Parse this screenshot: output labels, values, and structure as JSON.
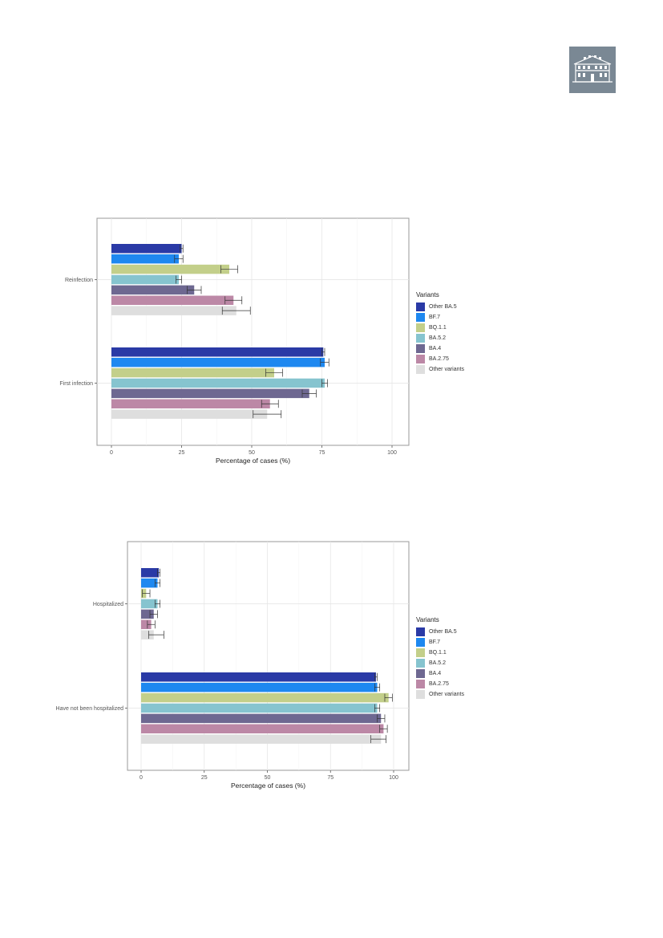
{
  "logo": {
    "icon": "building-icon",
    "color": "#7a8894"
  },
  "legend": {
    "title": "Variants",
    "items": [
      {
        "label": "Other BA.5",
        "color": "#2a3aa6"
      },
      {
        "label": "BF.7",
        "color": "#1e88f0"
      },
      {
        "label": "BQ.1.1",
        "color": "#c3cf8a"
      },
      {
        "label": "BA.5.2",
        "color": "#86c4cf"
      },
      {
        "label": "BA.4",
        "color": "#6e6891"
      },
      {
        "label": "BA.2.75",
        "color": "#bc88a6"
      },
      {
        "label": "Other variants",
        "color": "#dedede"
      }
    ]
  },
  "chart_data": [
    {
      "type": "bar",
      "orientation": "horizontal",
      "categories": [
        "Reinfection",
        "First infection"
      ],
      "series": [
        {
          "name": "Other BA.5",
          "values": [
            25,
            75.5
          ],
          "error": [
            [
              24.5,
              25.5
            ],
            [
              75,
              76
            ]
          ]
        },
        {
          "name": "BF.7",
          "values": [
            24,
            76
          ],
          "error": [
            [
              22.5,
              25.5
            ],
            [
              74.5,
              77.5
            ]
          ]
        },
        {
          "name": "BQ.1.1",
          "values": [
            42,
            58
          ],
          "error": [
            [
              39,
              45
            ],
            [
              55,
              61
            ]
          ]
        },
        {
          "name": "BA.5.2",
          "values": [
            24,
            76
          ],
          "error": [
            [
              23,
              25
            ],
            [
              75,
              77
            ]
          ]
        },
        {
          "name": "BA.4",
          "values": [
            29.5,
            70.5
          ],
          "error": [
            [
              27,
              32
            ],
            [
              68,
              73
            ]
          ]
        },
        {
          "name": "BA.2.75",
          "values": [
            43.5,
            56.5
          ],
          "error": [
            [
              40.5,
              46.5
            ],
            [
              53.5,
              59.5
            ]
          ]
        },
        {
          "name": "Other variants",
          "values": [
            44.5,
            55.5
          ],
          "error": [
            [
              39.5,
              49.5
            ],
            [
              50.5,
              60.5
            ]
          ]
        }
      ],
      "xlabel": "Percentage of cases (%)",
      "ylabel": "",
      "xlim": [
        0,
        100
      ],
      "xticks": [
        0,
        25,
        50,
        75,
        100
      ],
      "grid": true,
      "legend_position": "right"
    },
    {
      "type": "bar",
      "orientation": "horizontal",
      "categories": [
        "Hospitalized",
        "Have not been hospitalized"
      ],
      "series": [
        {
          "name": "Other BA.5",
          "values": [
            7,
            93
          ],
          "error": [
            [
              6.5,
              7.5
            ],
            [
              92.5,
              93.5
            ]
          ]
        },
        {
          "name": "BF.7",
          "values": [
            6.5,
            93.5
          ],
          "error": [
            [
              5.5,
              7.5
            ],
            [
              92.5,
              94.5
            ]
          ]
        },
        {
          "name": "BQ.1.1",
          "values": [
            2,
            98
          ],
          "error": [
            [
              0.5,
              3.5
            ],
            [
              96.5,
              99.5
            ]
          ]
        },
        {
          "name": "BA.5.2",
          "values": [
            6.5,
            93.5
          ],
          "error": [
            [
              5.5,
              7.5
            ],
            [
              92.5,
              94.5
            ]
          ]
        },
        {
          "name": "BA.4",
          "values": [
            5,
            95
          ],
          "error": [
            [
              3.5,
              6.5
            ],
            [
              93.5,
              96.5
            ]
          ]
        },
        {
          "name": "BA.2.75",
          "values": [
            4,
            96
          ],
          "error": [
            [
              2.5,
              5.5
            ],
            [
              94.5,
              97.5
            ]
          ]
        },
        {
          "name": "Other variants",
          "values": [
            5,
            95
          ],
          "error": [
            [
              3,
              9
            ],
            [
              91,
              97
            ]
          ]
        }
      ],
      "xlabel": "Percentage of cases (%)",
      "ylabel": "",
      "xlim": [
        0,
        100
      ],
      "xticks": [
        0,
        25,
        50,
        75,
        100
      ],
      "grid": true,
      "legend_position": "right"
    }
  ]
}
